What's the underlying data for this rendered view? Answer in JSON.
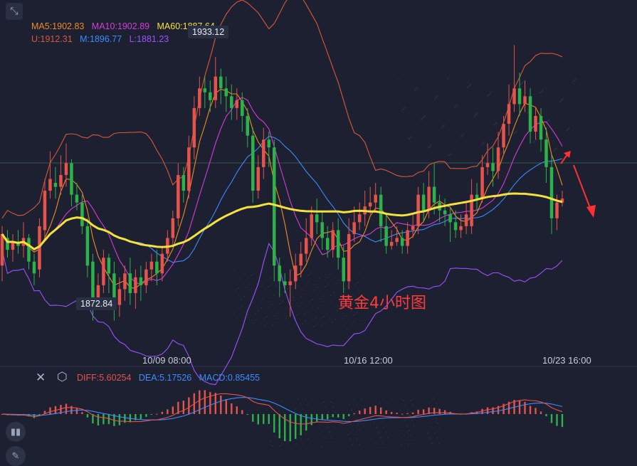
{
  "legend": {
    "ma5": "MA5:1902.83",
    "ma10": "MA10:1902.89",
    "ma60": "MA60:1887.64",
    "upper": "U:1912.31",
    "mid": "M:1896.77",
    "lower": "L:1881.23"
  },
  "annotations": {
    "high_label": "1933.12",
    "low_label": "1872.84",
    "title": "黄金4小时图"
  },
  "xaxis": {
    "ticks": [
      "10/09 08:00",
      "10/16 12:00",
      "10/23 16:00"
    ]
  },
  "macd_legend": {
    "diff": "DIFF:5.60254",
    "dea": "DEA:5.17526",
    "macd": "MACD:0.85455"
  },
  "icons": {
    "top_left": "collapse-arrows-icon",
    "close": "close-icon",
    "settings": "hexagon-settings-icon",
    "indicator": "bar-chart-icon",
    "draw": "pencil-icon"
  },
  "colors": {
    "up": "#e5534b",
    "down": "#2db24a",
    "ma5": "#f08a24",
    "ma10": "#d63cd6",
    "ma60": "#f5e13c",
    "boll_upper": "#d9583a",
    "boll_mid": "#3d8bff",
    "boll_lower": "#9a52ff",
    "title": "#ff3b3b"
  },
  "chart_data": {
    "type": "candlestick",
    "symbol_note": "Gold 4H",
    "x_ticks": [
      "10/09 08:00",
      "10/16 12:00",
      "10/23 16:00"
    ],
    "y_range": [
      1858,
      1946
    ],
    "candles": [
      [
        1880,
        1888,
        1876,
        1890
      ],
      [
        1887,
        1884,
        1882,
        1889
      ],
      [
        1884,
        1886,
        1881,
        1888
      ],
      [
        1886,
        1885,
        1883,
        1889
      ],
      [
        1885,
        1887,
        1882,
        1891
      ],
      [
        1887,
        1881,
        1879,
        1888
      ],
      [
        1881,
        1878,
        1875,
        1883
      ],
      [
        1879,
        1890,
        1877,
        1892
      ],
      [
        1889,
        1899,
        1887,
        1902
      ],
      [
        1899,
        1902,
        1897,
        1909
      ],
      [
        1901,
        1900,
        1897,
        1905
      ],
      [
        1900,
        1903,
        1898,
        1908
      ],
      [
        1903,
        1906,
        1900,
        1911
      ],
      [
        1906,
        1898,
        1895,
        1907
      ],
      [
        1898,
        1896,
        1894,
        1901
      ],
      [
        1896,
        1890,
        1888,
        1898
      ],
      [
        1890,
        1880,
        1877,
        1892
      ],
      [
        1881,
        1871,
        1866,
        1883
      ],
      [
        1871,
        1875,
        1869,
        1878
      ],
      [
        1875,
        1882,
        1873,
        1884
      ],
      [
        1882,
        1878,
        1873,
        1883
      ],
      [
        1878,
        1869,
        1866,
        1881
      ],
      [
        1870,
        1874,
        1867,
        1877
      ],
      [
        1874,
        1878,
        1871,
        1880
      ],
      [
        1878,
        1873,
        1870,
        1882
      ],
      [
        1873,
        1877,
        1869,
        1879
      ],
      [
        1877,
        1875,
        1871,
        1880
      ],
      [
        1875,
        1879,
        1873,
        1881
      ],
      [
        1879,
        1881,
        1876,
        1883
      ],
      [
        1881,
        1878,
        1875,
        1884
      ],
      [
        1878,
        1883,
        1876,
        1885
      ],
      [
        1883,
        1887,
        1881,
        1889
      ],
      [
        1887,
        1892,
        1885,
        1894
      ],
      [
        1892,
        1903,
        1890,
        1906
      ],
      [
        1903,
        1899,
        1896,
        1905
      ],
      [
        1899,
        1910,
        1897,
        1913
      ],
      [
        1910,
        1920,
        1907,
        1923
      ],
      [
        1920,
        1925,
        1918,
        1928
      ],
      [
        1925,
        1924,
        1920,
        1928
      ],
      [
        1924,
        1922,
        1919,
        1927
      ],
      [
        1922,
        1928,
        1920,
        1933
      ],
      [
        1928,
        1925,
        1921,
        1930
      ],
      [
        1925,
        1923,
        1919,
        1928
      ],
      [
        1923,
        1920,
        1917,
        1926
      ],
      [
        1920,
        1922,
        1917,
        1925
      ],
      [
        1922,
        1918,
        1914,
        1924
      ],
      [
        1918,
        1913,
        1910,
        1920
      ],
      [
        1913,
        1899,
        1896,
        1915
      ],
      [
        1899,
        1905,
        1897,
        1908
      ],
      [
        1905,
        1912,
        1902,
        1915
      ],
      [
        1912,
        1910,
        1905,
        1914
      ],
      [
        1910,
        1880,
        1876,
        1912
      ],
      [
        1880,
        1876,
        1872,
        1882
      ],
      [
        1876,
        1875,
        1873,
        1878
      ],
      [
        1875,
        1876,
        1867,
        1879
      ],
      [
        1876,
        1880,
        1874,
        1883
      ],
      [
        1880,
        1883,
        1877,
        1886
      ],
      [
        1883,
        1887,
        1881,
        1892
      ],
      [
        1887,
        1893,
        1885,
        1895
      ],
      [
        1893,
        1891,
        1888,
        1897
      ],
      [
        1891,
        1887,
        1884,
        1894
      ],
      [
        1887,
        1884,
        1882,
        1890
      ],
      [
        1884,
        1889,
        1882,
        1891
      ],
      [
        1889,
        1882,
        1879,
        1892
      ],
      [
        1882,
        1876,
        1873,
        1885
      ],
      [
        1876,
        1888,
        1874,
        1892
      ],
      [
        1888,
        1891,
        1886,
        1895
      ],
      [
        1891,
        1893,
        1889,
        1896
      ],
      [
        1893,
        1895,
        1890,
        1899
      ],
      [
        1895,
        1896,
        1893,
        1900
      ],
      [
        1896,
        1898,
        1894,
        1901
      ],
      [
        1898,
        1890,
        1886,
        1900
      ],
      [
        1890,
        1885,
        1883,
        1893
      ],
      [
        1885,
        1886,
        1884,
        1889
      ],
      [
        1886,
        1887,
        1885,
        1890
      ],
      [
        1887,
        1885,
        1883,
        1889
      ],
      [
        1885,
        1889,
        1883,
        1891
      ],
      [
        1889,
        1890,
        1887,
        1893
      ],
      [
        1890,
        1898,
        1888,
        1900
      ],
      [
        1898,
        1894,
        1891,
        1901
      ],
      [
        1894,
        1900,
        1892,
        1904
      ],
      [
        1900,
        1896,
        1893,
        1906
      ],
      [
        1896,
        1894,
        1891,
        1898
      ],
      [
        1894,
        1893,
        1890,
        1897
      ],
      [
        1893,
        1891,
        1886,
        1895
      ],
      [
        1891,
        1889,
        1887,
        1894
      ],
      [
        1889,
        1890,
        1887,
        1893
      ],
      [
        1890,
        1893,
        1888,
        1896
      ],
      [
        1890,
        1898,
        1888,
        1902
      ],
      [
        1898,
        1897,
        1894,
        1901
      ],
      [
        1897,
        1905,
        1896,
        1908
      ],
      [
        1905,
        1906,
        1903,
        1911
      ],
      [
        1906,
        1904,
        1900,
        1910
      ],
      [
        1904,
        1910,
        1902,
        1914
      ],
      [
        1910,
        1916,
        1908,
        1918
      ],
      [
        1916,
        1921,
        1913,
        1926
      ],
      [
        1921,
        1925,
        1919,
        1936
      ],
      [
        1925,
        1921,
        1918,
        1929
      ],
      [
        1921,
        1923,
        1919,
        1927
      ],
      [
        1923,
        1914,
        1911,
        1925
      ],
      [
        1914,
        1918,
        1912,
        1920
      ],
      [
        1918,
        1912,
        1909,
        1920
      ],
      [
        1912,
        1905,
        1901,
        1915
      ],
      [
        1905,
        1892,
        1888,
        1908
      ],
      [
        1892,
        1896,
        1889,
        1898
      ],
      [
        1896,
        1897,
        1895,
        1899
      ]
    ],
    "ma60_last": 1887.64,
    "ma5_last": 1902.83,
    "ma10_last": 1902.89,
    "boll": {
      "upper": 1912.31,
      "mid": 1896.77,
      "lower": 1881.23
    },
    "high_marker": 1933.12,
    "low_marker": 1872.84,
    "macd": {
      "diff": 5.60254,
      "dea": 5.17526,
      "macd": 0.85455
    }
  }
}
